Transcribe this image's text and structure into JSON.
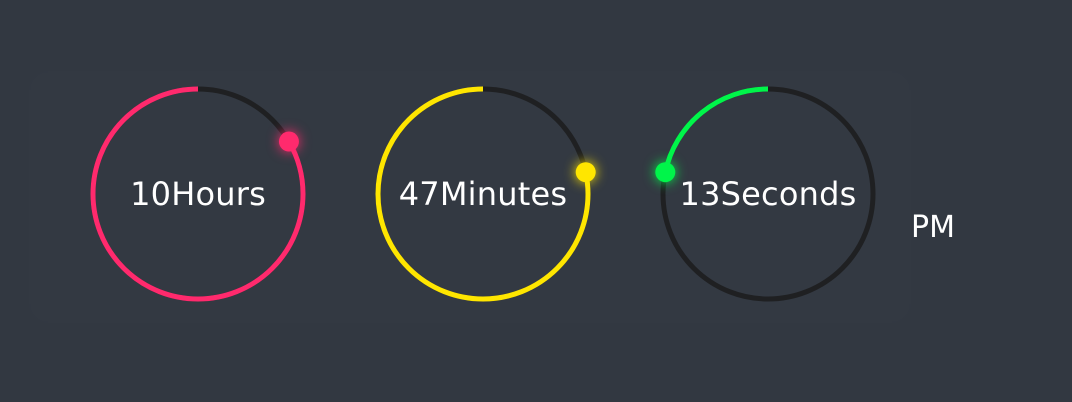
{
  "clock": {
    "hours": {
      "value": "10",
      "unit": "Hours",
      "fraction": 0.8333,
      "color": "#ff2a6d"
    },
    "minutes": {
      "value": "47",
      "unit": "Minutes",
      "fraction": 0.7833,
      "color": "#ffe600"
    },
    "seconds": {
      "value": "13",
      "unit": "Seconds",
      "fraction": 0.2167,
      "color": "#00f54a"
    },
    "ampm": "PM"
  }
}
